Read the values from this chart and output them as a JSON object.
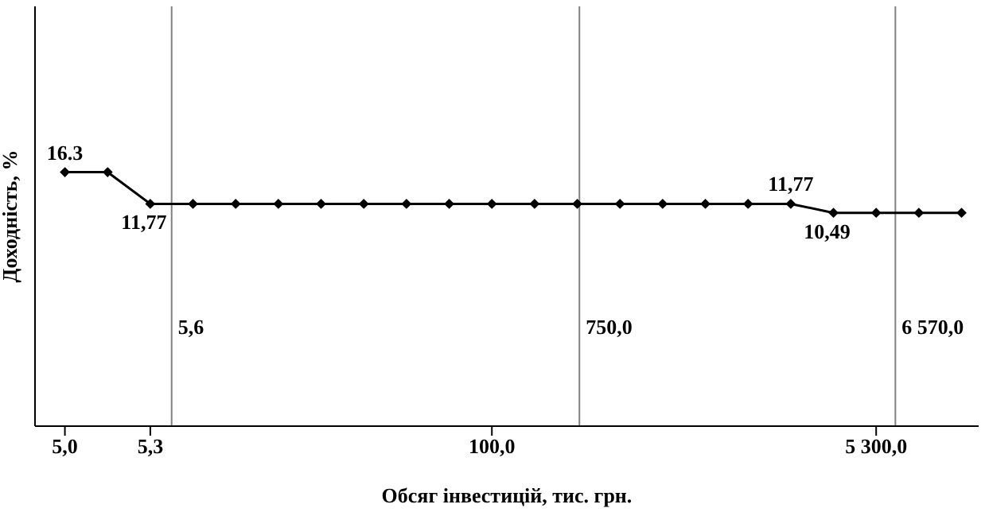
{
  "chart_data": {
    "type": "line",
    "xlabel": "Обсяг інвестицій, тис. грн.",
    "ylabel": "Доходність, %",
    "categories": [
      "5,0",
      null,
      "5,3",
      null,
      null,
      null,
      null,
      null,
      null,
      null,
      "100,0",
      null,
      null,
      null,
      null,
      null,
      null,
      null,
      null,
      "5 300,0",
      null,
      null
    ],
    "ylim": [
      -20,
      40
    ],
    "tick_labels": "x",
    "legend": false,
    "marker": "diamond",
    "line_style": "solid",
    "series": [
      {
        "color": "#000000",
        "values": [
          16.3,
          16.3,
          11.77,
          11.77,
          11.77,
          11.77,
          11.77,
          11.77,
          11.77,
          11.77,
          11.77,
          11.77,
          11.77,
          11.77,
          11.77,
          11.77,
          11.77,
          11.77,
          10.49,
          10.49,
          10.49,
          10.49
        ],
        "value_labels": [
          "16.3",
          null,
          "11,77",
          null,
          null,
          null,
          null,
          null,
          null,
          null,
          null,
          null,
          null,
          null,
          null,
          null,
          null,
          "11,77",
          "10,49",
          null,
          null,
          null
        ]
      }
    ],
    "annotations": [
      "5,6",
      "750,0",
      "6 570,0"
    ]
  }
}
